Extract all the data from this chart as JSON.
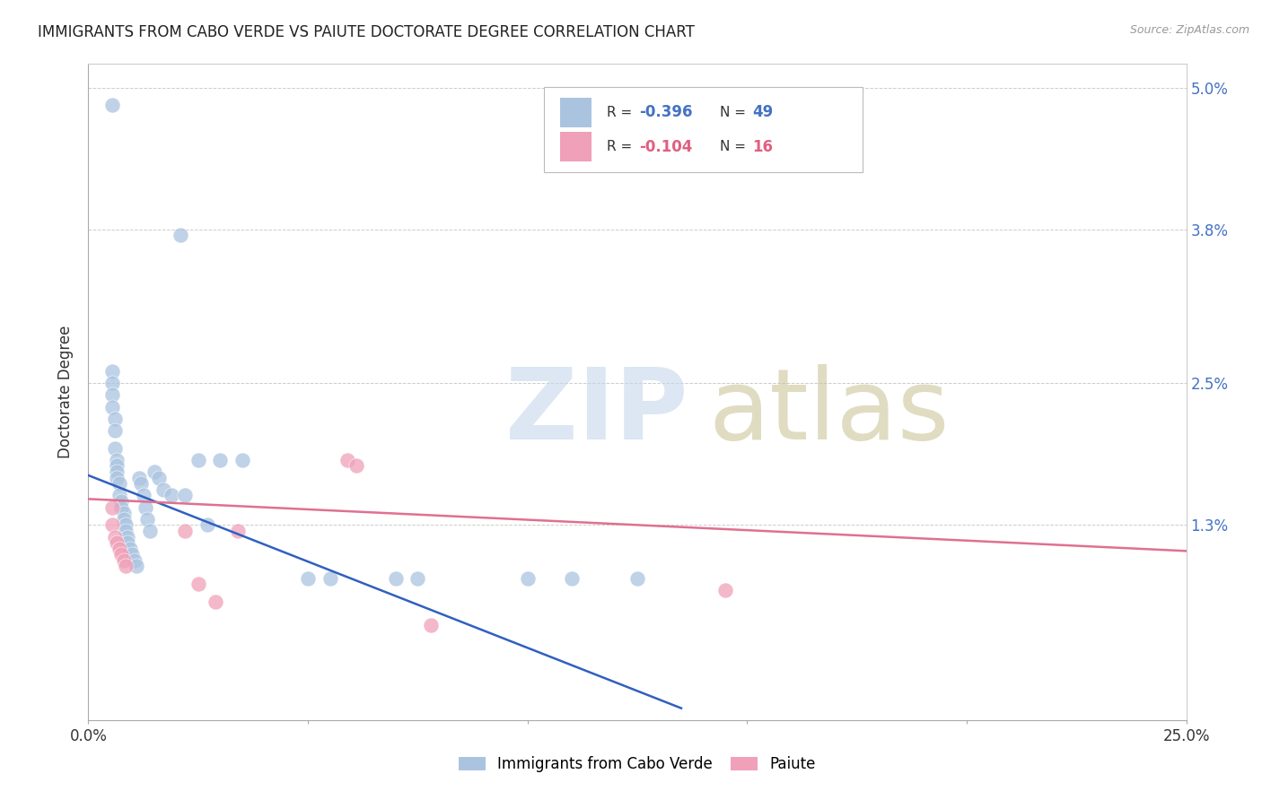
{
  "title": "IMMIGRANTS FROM CABO VERDE VS PAIUTE DOCTORATE DEGREE CORRELATION CHART",
  "source": "Source: ZipAtlas.com",
  "ylabel": "Doctorate Degree",
  "y_ticks": [
    0.0,
    1.3,
    2.5,
    3.8,
    5.0
  ],
  "y_tick_labels": [
    "",
    "1.3%",
    "2.5%",
    "3.8%",
    "5.0%"
  ],
  "x_min": 0.0,
  "x_max": 25.0,
  "y_min": -0.35,
  "y_max": 5.2,
  "cabo_verde_color": "#aac4e0",
  "paiute_color": "#f0a0b8",
  "line1_color": "#3060c0",
  "line2_color": "#e07090",
  "cabo_verde_x": [
    0.55,
    0.55,
    0.55,
    0.55,
    0.55,
    0.6,
    0.6,
    0.6,
    0.65,
    0.65,
    0.65,
    0.65,
    0.7,
    0.7,
    0.75,
    0.75,
    0.8,
    0.8,
    0.85,
    0.85,
    0.9,
    0.9,
    0.95,
    1.0,
    1.05,
    1.1,
    1.15,
    1.2,
    1.25,
    1.3,
    1.35,
    1.4,
    1.5,
    1.6,
    1.7,
    1.9,
    2.1,
    2.2,
    2.5,
    2.7,
    3.0,
    3.5,
    5.0,
    5.5,
    7.0,
    7.5,
    10.0,
    11.0,
    12.5
  ],
  "cabo_verde_y": [
    4.85,
    2.6,
    2.5,
    2.4,
    2.3,
    2.2,
    2.1,
    1.95,
    1.85,
    1.8,
    1.75,
    1.7,
    1.65,
    1.55,
    1.5,
    1.45,
    1.4,
    1.35,
    1.3,
    1.25,
    1.2,
    1.15,
    1.1,
    1.05,
    1.0,
    0.95,
    1.7,
    1.65,
    1.55,
    1.45,
    1.35,
    1.25,
    1.75,
    1.7,
    1.6,
    1.55,
    3.75,
    1.55,
    1.85,
    1.3,
    1.85,
    1.85,
    0.85,
    0.85,
    0.85,
    0.85,
    0.85,
    0.85,
    0.85
  ],
  "paiute_x": [
    0.55,
    0.55,
    0.6,
    0.65,
    0.7,
    0.75,
    0.8,
    0.85,
    2.2,
    2.5,
    2.9,
    3.4,
    5.9,
    6.1,
    14.5,
    7.8
  ],
  "paiute_y": [
    1.45,
    1.3,
    1.2,
    1.15,
    1.1,
    1.05,
    1.0,
    0.95,
    1.25,
    0.8,
    0.65,
    1.25,
    1.85,
    1.8,
    0.75,
    0.45
  ],
  "line1_x": [
    0.0,
    13.5
  ],
  "line1_y": [
    1.72,
    -0.25
  ],
  "line2_x": [
    0.0,
    25.0
  ],
  "line2_y": [
    1.52,
    1.08
  ]
}
